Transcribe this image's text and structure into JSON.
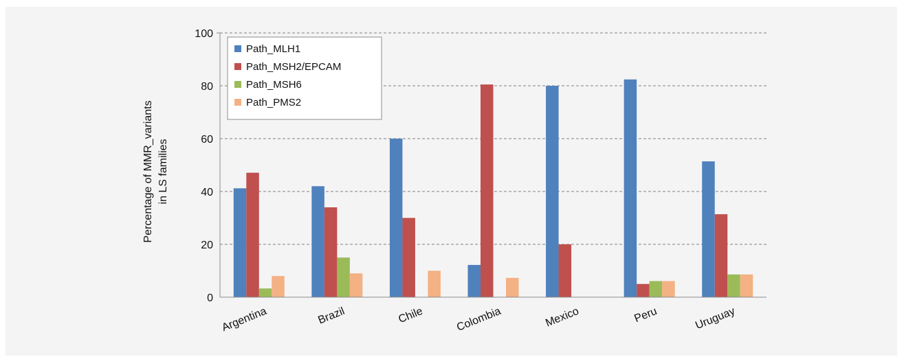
{
  "chart_data": {
    "type": "bar",
    "categories": [
      "Argentina",
      "Brazil",
      "Chile",
      "Colombia",
      "Mexico",
      "Peru",
      "Uruguay"
    ],
    "series": [
      {
        "name": "Path_MLH1",
        "color": "#4f81bd",
        "values": [
          41.2,
          42,
          60,
          12.2,
          80,
          82.4,
          51.4
        ]
      },
      {
        "name": "Path_MSH2/EPCAM",
        "color": "#c0504d",
        "values": [
          47.1,
          34,
          30,
          80.5,
          20,
          5,
          31.4
        ]
      },
      {
        "name": "Path_MSH6",
        "color": "#9bbb59",
        "values": [
          3.3,
          15,
          0,
          0,
          0,
          6.1,
          8.6
        ]
      },
      {
        "name": "Path_PMS2",
        "color": "#f4b183",
        "values": [
          8,
          9,
          10,
          7.3,
          0,
          6.1,
          8.6
        ]
      }
    ],
    "ylabel_lines": [
      "Percentage  of  MMR_variants",
      "in LS families"
    ],
    "yticks": [
      0,
      20,
      40,
      60,
      80,
      100
    ],
    "ylim": [
      0,
      100
    ],
    "grid": "horizontal-dashed",
    "legend_position": "top-left"
  }
}
